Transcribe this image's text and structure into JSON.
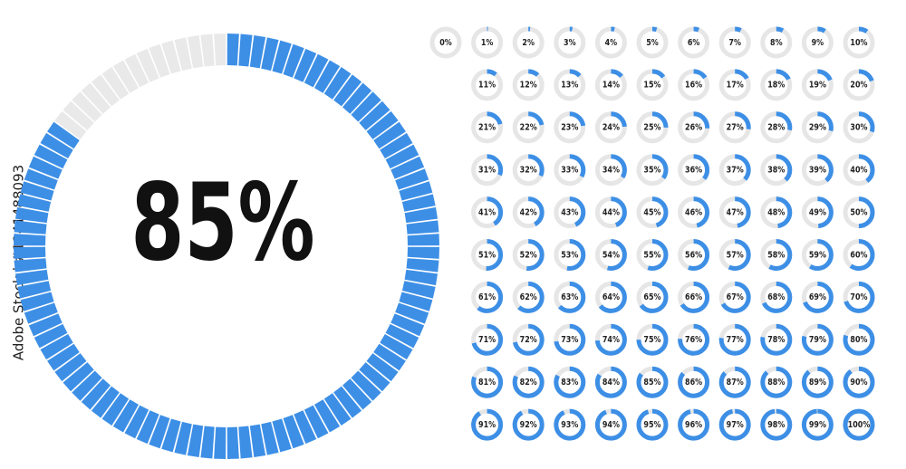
{
  "main": {
    "value": 85,
    "label": "85%",
    "segments": 100,
    "color": "#3d8fe6",
    "track_color": "#e9e9e9"
  },
  "watermark": "Adobe Stock | #1241488093",
  "rings": {
    "color": "#3d8fe6",
    "track_color": "#e6e6e6",
    "values": [
      0,
      1,
      2,
      3,
      4,
      5,
      6,
      7,
      8,
      9,
      10,
      11,
      12,
      13,
      14,
      15,
      16,
      17,
      18,
      19,
      20,
      21,
      22,
      23,
      24,
      25,
      26,
      27,
      28,
      29,
      30,
      31,
      32,
      33,
      34,
      35,
      36,
      37,
      38,
      39,
      40,
      41,
      42,
      43,
      44,
      45,
      46,
      47,
      48,
      49,
      50,
      51,
      52,
      53,
      54,
      55,
      56,
      57,
      58,
      59,
      60,
      61,
      62,
      63,
      64,
      65,
      66,
      67,
      68,
      69,
      70,
      71,
      72,
      73,
      74,
      75,
      76,
      77,
      78,
      79,
      80,
      81,
      82,
      83,
      84,
      85,
      86,
      87,
      88,
      89,
      90,
      91,
      92,
      93,
      94,
      95,
      96,
      97,
      98,
      99,
      100
    ],
    "value_labels": [
      "0%",
      "1%",
      "2%",
      "3%",
      "4%",
      "5%",
      "6%",
      "7%",
      "8%",
      "9%",
      "10%",
      "11%",
      "12%",
      "13%",
      "14%",
      "15%",
      "16%",
      "17%",
      "18%",
      "19%",
      "20%",
      "21%",
      "22%",
      "23%",
      "24%",
      "25%",
      "26%",
      "27%",
      "28%",
      "29%",
      "30%",
      "31%",
      "32%",
      "33%",
      "34%",
      "35%",
      "36%",
      "37%",
      "38%",
      "39%",
      "40%",
      "41%",
      "42%",
      "43%",
      "44%",
      "45%",
      "46%",
      "47%",
      "48%",
      "49%",
      "50%",
      "51%",
      "52%",
      "53%",
      "54%",
      "55%",
      "56%",
      "57%",
      "58%",
      "59%",
      "60%",
      "61%",
      "62%",
      "63%",
      "64%",
      "65%",
      "66%",
      "67%",
      "68%",
      "69%",
      "70%",
      "71%",
      "72%",
      "73%",
      "74%",
      "75%",
      "76%",
      "77%",
      "78%",
      "79%",
      "80%",
      "81%",
      "82%",
      "83%",
      "84%",
      "85%",
      "86%",
      "87%",
      "88%",
      "89%",
      "90%",
      "91%",
      "92%",
      "93%",
      "94%",
      "95%",
      "96%",
      "97%",
      "98%",
      "99%",
      "100%"
    ]
  }
}
